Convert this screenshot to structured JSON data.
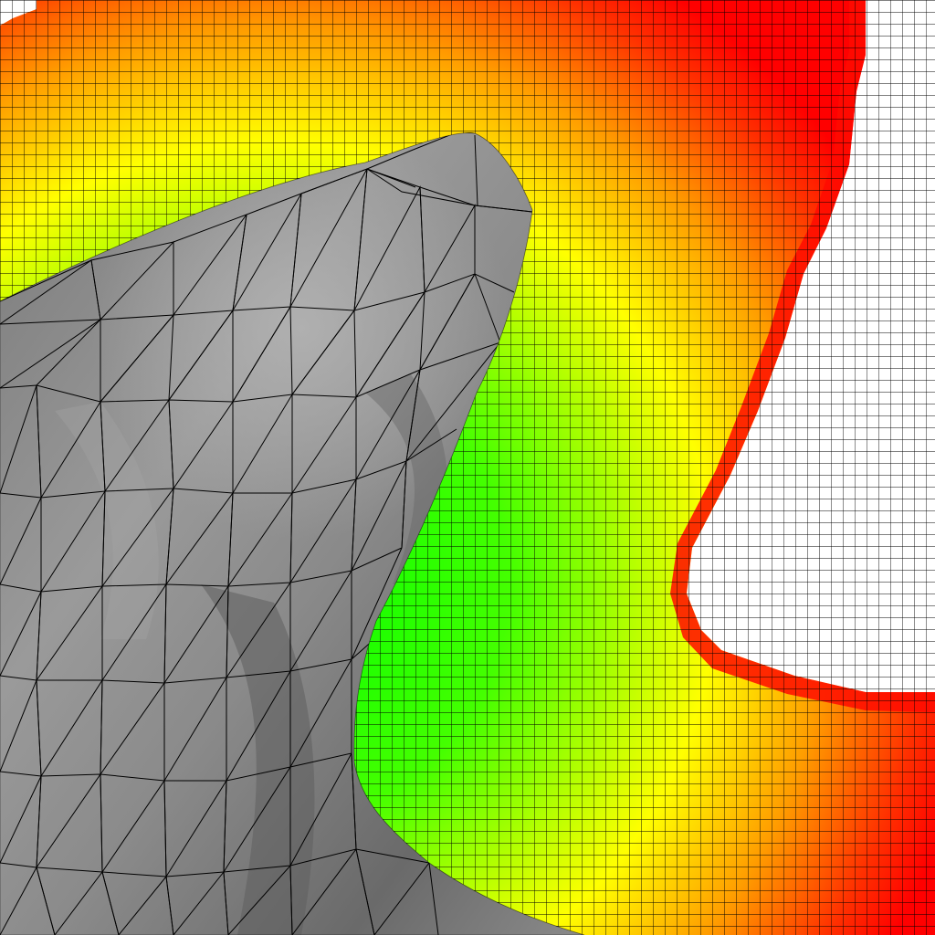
{
  "scene": {
    "kind": "distance-field-grid-with-triangle-mesh",
    "grid_visible": true,
    "mesh_wireframe_visible": true,
    "colors": {
      "field_near": "#00ff00",
      "field_mid": "#ffff00",
      "field_far": "#ff0000",
      "outside_band": "#ffffff",
      "grid_lines": "#000000",
      "mesh_base": "#8c8c8c",
      "mesh_light": "#a8a8a8",
      "mesh_dark": "#5e5e5e",
      "mesh_edges": "#000000"
    }
  }
}
